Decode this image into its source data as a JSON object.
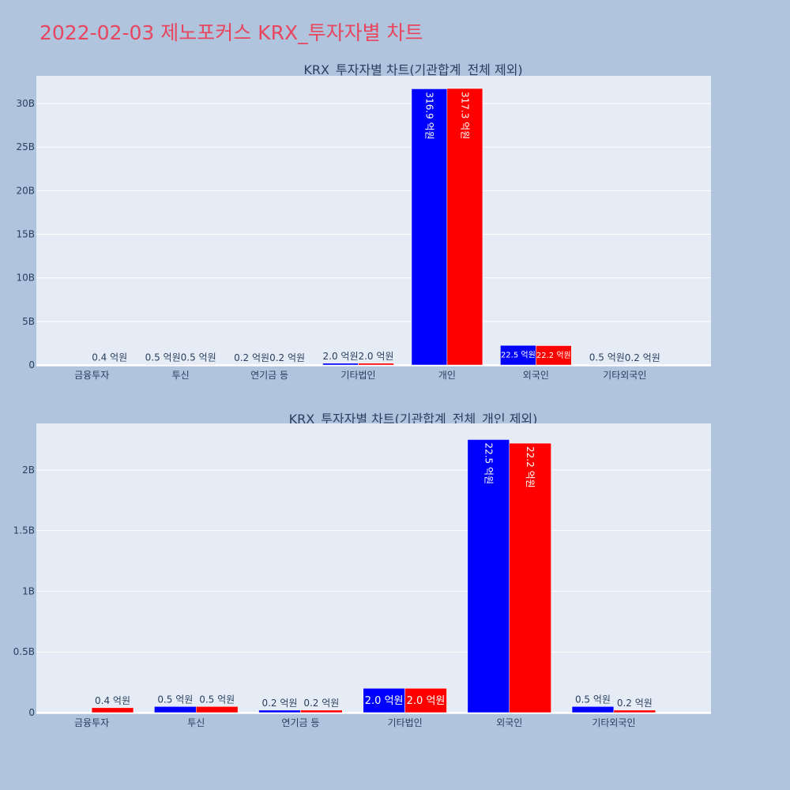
{
  "page": {
    "title": "2022-02-03 제노포커스 KRX_투자자별 차트"
  },
  "colors": {
    "background": "#b0c4de",
    "plot_bg": "#e5ecf6",
    "title": "#e8465e",
    "series_1": "#0000ff",
    "series_2": "#ff0000",
    "text": "#2a3f5f"
  },
  "chart_data": [
    {
      "type": "bar",
      "title": "KRX_투자자별 차트(기관합계_전체 제외)",
      "categories": [
        "금융투자",
        "투신",
        "연기금 등",
        "기타법인",
        "개인",
        "외국인",
        "기타외국인"
      ],
      "series": [
        {
          "values": [
            0,
            50000000,
            20000000,
            200000000,
            31690000000,
            2250000000,
            50000000
          ],
          "labels": [
            "",
            "0.5 억원",
            "0.2 억원",
            "2.0 억원",
            "316.9 억원",
            "22.5 억원",
            "0.5 억원"
          ]
        },
        {
          "values": [
            40000000,
            50000000,
            20000000,
            200000000,
            31730000000,
            2220000000,
            20000000
          ],
          "labels": [
            "0.4 억원",
            "0.5 억원",
            "0.2 억원",
            "2.0 억원",
            "317.3 억원",
            "22.2 억원",
            "0.2 억원"
          ]
        }
      ],
      "ylim": [
        0,
        33000000000
      ],
      "yticks": [
        0,
        5000000000,
        10000000000,
        15000000000,
        20000000000,
        25000000000,
        30000000000
      ],
      "ytick_labels": [
        "0",
        "5B",
        "10B",
        "15B",
        "20B",
        "25B",
        "30B"
      ],
      "grid": true,
      "barmode": "group"
    },
    {
      "type": "bar",
      "title": "KRX_투자자별 차트(기관합계_전체_개인 제외)",
      "categories": [
        "금융투자",
        "투신",
        "연기금 등",
        "기타법인",
        "외국인",
        "기타외국인"
      ],
      "series": [
        {
          "values": [
            0,
            50000000,
            20000000,
            200000000,
            2250000000,
            50000000
          ],
          "labels": [
            "",
            "0.5 억원",
            "0.2 억원",
            "2.0 억원",
            "22.5 억원",
            "0.5 억원"
          ]
        },
        {
          "values": [
            40000000,
            50000000,
            20000000,
            200000000,
            2220000000,
            20000000
          ],
          "labels": [
            "0.4 억원",
            "0.5 억원",
            "0.2 억원",
            "2.0 억원",
            "22.2 억원",
            "0.2 억원"
          ]
        }
      ],
      "ylim": [
        0,
        2370000000
      ],
      "yticks": [
        0,
        500000000,
        1000000000,
        1500000000,
        2000000000
      ],
      "ytick_labels": [
        "0",
        "0.5B",
        "1B",
        "1.5B",
        "2B"
      ],
      "grid": true,
      "barmode": "group"
    }
  ]
}
